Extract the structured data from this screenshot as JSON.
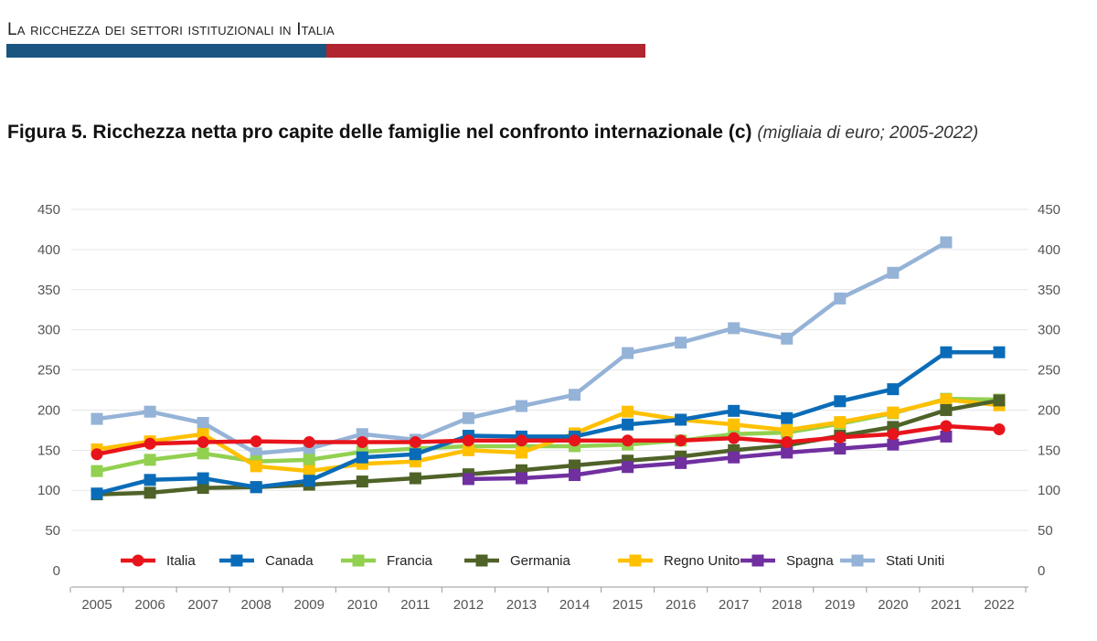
{
  "header": {
    "section": "La ricchezza dei settori istituzionali in Italia"
  },
  "title": {
    "main": "Figura 5. Ricchezza netta pro capite delle famiglie nel confronto internazionale (c)",
    "note": "(migliaia di euro; 2005-2022)"
  },
  "chart_data": {
    "type": "line",
    "title": "Figura 5. Ricchezza netta pro capite delle famiglie nel confronto internazionale (c)",
    "subtitle": "(migliaia di euro; 2005-2022)",
    "x": [
      "2005",
      "2006",
      "2007",
      "2008",
      "2009",
      "2010",
      "2011",
      "2012",
      "2013",
      "2014",
      "2015",
      "2016",
      "2017",
      "2018",
      "2019",
      "2020",
      "2021",
      "2022"
    ],
    "ylim": [
      0,
      450
    ],
    "yticks": [
      "0",
      "50",
      "100",
      "150",
      "200",
      "250",
      "300",
      "350",
      "400",
      "450"
    ],
    "secondary_axis": "mirrored right",
    "grid": true,
    "legend": "bottom-inside",
    "series": [
      {
        "name": "Italia",
        "color": "#e8141b",
        "marker": "circle",
        "values": [
          145,
          158,
          160,
          161,
          160,
          160,
          160,
          162,
          162,
          162,
          162,
          162,
          165,
          160,
          166,
          170,
          180,
          176
        ]
      },
      {
        "name": "Canada",
        "color": "#0a6cb8",
        "marker": "square",
        "values": [
          96,
          113,
          115,
          104,
          112,
          141,
          145,
          168,
          167,
          167,
          182,
          188,
          199,
          190,
          211,
          226,
          272,
          272
        ]
      },
      {
        "name": "Francia",
        "color": "#92d050",
        "marker": "square",
        "values": [
          124,
          138,
          146,
          136,
          138,
          148,
          152,
          155,
          155,
          155,
          157,
          162,
          170,
          172,
          183,
          196,
          214,
          213
        ]
      },
      {
        "name": "Germania",
        "color": "#4f6228",
        "marker": "square",
        "values": [
          95,
          97,
          103,
          104,
          107,
          111,
          115,
          120,
          125,
          131,
          137,
          142,
          150,
          156,
          168,
          179,
          200,
          212
        ]
      },
      {
        "name": "Regno Unito",
        "color": "#ffc000",
        "marker": "square",
        "values": [
          151,
          161,
          170,
          130,
          124,
          133,
          136,
          150,
          147,
          171,
          198,
          188,
          182,
          175,
          185,
          197,
          213,
          206
        ]
      },
      {
        "name": "Spagna",
        "color": "#7030a0",
        "marker": "square",
        "values": [
          null,
          null,
          null,
          null,
          null,
          null,
          null,
          114,
          115,
          119,
          129,
          134,
          141,
          147,
          152,
          157,
          167,
          null
        ]
      },
      {
        "name": "Stati Uniti",
        "color": "#95b3d7",
        "marker": "square",
        "values": [
          189,
          198,
          184,
          146,
          152,
          170,
          163,
          190,
          205,
          219,
          271,
          284,
          302,
          289,
          339,
          371,
          409,
          null
        ]
      }
    ]
  }
}
